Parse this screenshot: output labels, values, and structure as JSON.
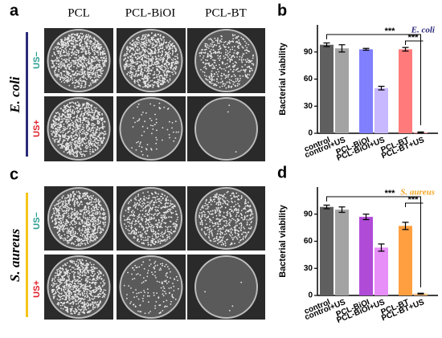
{
  "panels": {
    "a": "a",
    "c": "c",
    "columns": [
      "PCL",
      "PCL-BiOI",
      "PCL-BT"
    ],
    "rows": [
      "US−",
      "US+"
    ],
    "species_top": "E. coli",
    "species_bottom": "S. aureus"
  },
  "chart_data": [
    {
      "type": "bar",
      "panel": "b",
      "annotation": "E. coli",
      "annotation_color": "#2b2a7a",
      "ylabel": "Bacterial viability",
      "categories": [
        "control",
        "control+US",
        "PCL-BiOI",
        "PCL-BiOI+US",
        "PCL-BT",
        "PCL-BT+US"
      ],
      "values": [
        98,
        94,
        93,
        50,
        93,
        1
      ],
      "errors": [
        2,
        4,
        1,
        2,
        2,
        0.5
      ],
      "colors": [
        "#5f5f5f",
        "#a3a3a3",
        "#8080ff",
        "#c8b8ff",
        "#ff7b7b",
        "#ff9d9d"
      ],
      "ylim": [
        0,
        120
      ],
      "yticks": [
        0,
        30,
        60,
        90
      ],
      "significance": [
        "***",
        "***"
      ]
    },
    {
      "type": "bar",
      "panel": "d",
      "annotation": "S. aureus",
      "annotation_color": "#f5a623",
      "ylabel": "Bacterial viability",
      "categories": [
        "control",
        "control+US",
        "PCL-BiOI",
        "PCL-BiOI+US",
        "PCL-BT",
        "PCL-BT+US"
      ],
      "values": [
        98,
        95,
        87,
        53,
        77,
        2
      ],
      "errors": [
        2,
        3,
        3,
        4,
        4,
        0.5
      ],
      "colors": [
        "#5f5f5f",
        "#a3a3a3",
        "#b04bd8",
        "#e88ef8",
        "#ff9f40",
        "#ffc080"
      ],
      "ylim": [
        0,
        120
      ],
      "yticks": [
        0,
        30,
        60,
        90
      ],
      "significance": [
        "***",
        "***"
      ]
    }
  ]
}
